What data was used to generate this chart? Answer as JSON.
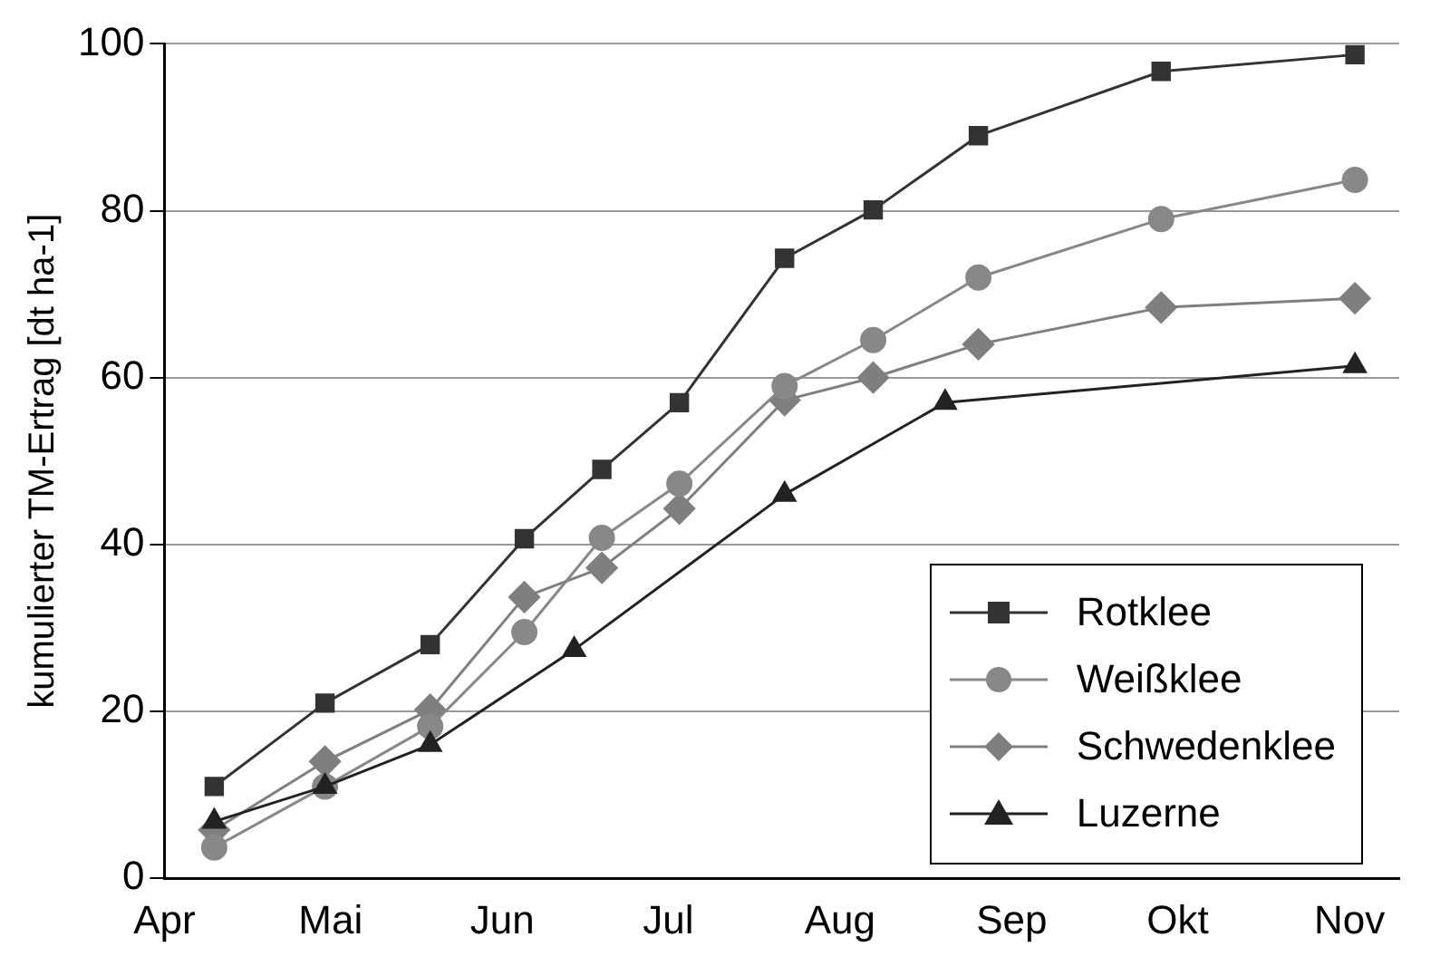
{
  "chart_data": {
    "type": "line",
    "ylabel": "kumulierter TM-Ertrag [dt ha-1]",
    "x": [
      "--04-10",
      "--04-30",
      "--05-19",
      "--06-05",
      "--06-19",
      "--07-03",
      "--07-22",
      "--08-07",
      "--08-26",
      "--09-28",
      "--11-02"
    ],
    "xlim": [
      "--04-01",
      "--11-10"
    ],
    "xticks": [
      {
        "value": "--04-01",
        "label": "Apr"
      },
      {
        "value": "--05-01",
        "label": "Mai"
      },
      {
        "value": "--06-01",
        "label": "Jun"
      },
      {
        "value": "--07-01",
        "label": "Jul"
      },
      {
        "value": "--08-01",
        "label": "Aug"
      },
      {
        "value": "--09-01",
        "label": "Sep"
      },
      {
        "value": "--10-01",
        "label": "Okt"
      },
      {
        "value": "--11-01",
        "label": "Nov"
      }
    ],
    "ylim": [
      0,
      100
    ],
    "yticks": [
      0,
      20,
      40,
      60,
      80,
      100
    ],
    "grid": "y",
    "legend": "bottom right",
    "line_style": "solid",
    "series": [
      {
        "name": "Rotklee",
        "color": "#333333",
        "marker": "square",
        "values": [
          11,
          21,
          28,
          40.7,
          49,
          57,
          74.3,
          80.1,
          89,
          96.7,
          98.7
        ]
      },
      {
        "name": "Weißklee",
        "color": "#888888",
        "marker": "circle",
        "values": [
          3.7,
          11,
          18.2,
          29.5,
          40.8,
          47.3,
          59,
          64.5,
          72,
          79,
          83.7
        ]
      },
      {
        "name": "Schwedenklee",
        "color": "#7f7f7f",
        "marker": "diamond",
        "values": [
          5.8,
          14,
          20.2,
          33.7,
          37.2,
          44.3,
          57.3,
          60,
          64,
          68.4,
          69.5
        ]
      },
      {
        "name": "Luzerne",
        "color": "#222222",
        "marker": "triangle",
        "x": [
          "--04-10",
          "--04-30",
          "--05-19",
          "--06-14",
          "--07-22",
          "--08-20",
          "--11-02"
        ],
        "values": [
          6.8,
          11,
          16,
          27.4,
          46,
          57,
          61.4
        ]
      }
    ]
  }
}
